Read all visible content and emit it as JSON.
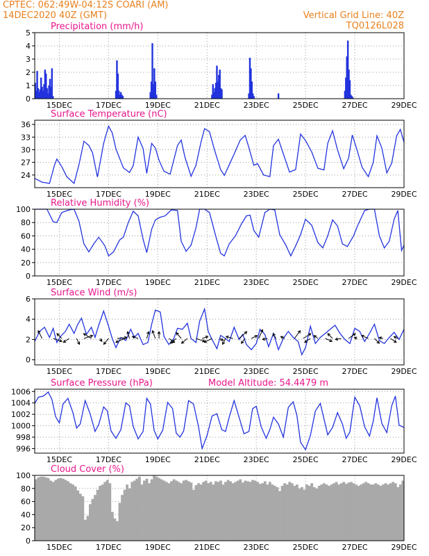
{
  "header": {
    "line1_left": "CPTEC:   062:49W-04:12S   COARI (AM)",
    "line2_left": "14DEC2020 40Z (GMT)",
    "line1_right": "Vertical Grid Line: 40Z",
    "line2_right": "TQ0126L028"
  },
  "colors": {
    "series": "#2233dd",
    "title": "#e8168c",
    "header": "#e8801e",
    "cloud": "#a9a9a9"
  },
  "chart_data": [
    {
      "type": "bar",
      "title": "Precipitation (mm/h)",
      "x_labels": [
        "15DEC",
        "17DEC",
        "19DEC",
        "21DEC",
        "23DEC",
        "25DEC",
        "27DEC",
        "29DEC"
      ],
      "x_range": [
        14.0,
        29.0
      ],
      "ylim": [
        0,
        5
      ],
      "yticks": [
        "0",
        "1",
        "2",
        "3",
        "4",
        "5"
      ],
      "x": [
        14.02,
        14.06,
        14.1,
        14.14,
        14.18,
        14.22,
        14.26,
        14.3,
        14.34,
        14.38,
        14.42,
        14.46,
        14.5,
        14.54,
        14.58,
        14.62,
        14.66,
        14.7,
        14.74,
        17.3,
        17.34,
        17.38,
        17.42,
        17.46,
        17.5,
        17.54,
        17.58,
        18.7,
        18.74,
        18.78,
        18.82,
        18.86,
        18.9,
        18.94,
        21.2,
        21.24,
        21.28,
        21.32,
        21.36,
        21.4,
        21.44,
        21.48,
        21.52,
        21.56,
        21.6,
        22.7,
        22.74,
        22.78,
        22.82,
        22.86,
        22.9,
        23.9,
        26.6,
        26.64,
        26.68,
        26.72,
        26.76,
        26.8,
        26.84,
        26.88,
        26.92
      ],
      "values": [
        1.2,
        0.6,
        2.1,
        0.8,
        0.5,
        0.7,
        1.6,
        0.9,
        0.6,
        1.1,
        2.2,
        1.9,
        0.8,
        0.4,
        1.0,
        1.5,
        0.9,
        2.3,
        0.2,
        0.6,
        2.9,
        1.9,
        0.6,
        0.3,
        0.5,
        0.3,
        0.2,
        0.5,
        1.3,
        4.2,
        1.1,
        2.3,
        1.3,
        0.3,
        0.3,
        1.1,
        0.5,
        0.8,
        1.2,
        2.5,
        1.3,
        1.8,
        2.2,
        0.8,
        0.7,
        0.4,
        3.1,
        2.3,
        1.3,
        0.4,
        0.2,
        0.4,
        0.6,
        1.6,
        3.2,
        4.4,
        2.2,
        1.4,
        0.3,
        0.2,
        0.1
      ]
    },
    {
      "type": "line",
      "title": "Surface Temperature (nC)",
      "x_labels": [
        "15DEC",
        "17DEC",
        "19DEC",
        "21DEC",
        "23DEC",
        "25DEC",
        "27DEC",
        "29DEC"
      ],
      "x_range": [
        14.0,
        29.0
      ],
      "ylim": [
        21,
        37
      ],
      "yticks": [
        "24",
        "27",
        "30",
        "33",
        "36"
      ],
      "x": [
        14.0,
        14.3,
        14.6,
        14.8,
        14.9,
        15.1,
        15.3,
        15.6,
        15.8,
        16.0,
        16.2,
        16.35,
        16.55,
        16.8,
        17.0,
        17.15,
        17.3,
        17.6,
        17.85,
        18.0,
        18.2,
        18.4,
        18.55,
        18.75,
        18.9,
        19.05,
        19.25,
        19.5,
        19.8,
        19.95,
        20.1,
        20.35,
        20.55,
        20.75,
        20.9,
        21.1,
        21.3,
        21.55,
        21.7,
        21.9,
        22.1,
        22.35,
        22.55,
        22.7,
        22.9,
        23.05,
        23.3,
        23.55,
        23.7,
        23.9,
        24.1,
        24.35,
        24.6,
        24.8,
        25.0,
        25.25,
        25.5,
        25.75,
        25.9,
        26.1,
        26.3,
        26.55,
        26.75,
        26.9,
        27.1,
        27.3,
        27.55,
        27.75,
        27.9,
        28.1,
        28.3,
        28.5,
        28.7,
        28.85,
        29.0
      ],
      "values": [
        23.2,
        22.3,
        22.0,
        26.3,
        27.8,
        26.0,
        23.6,
        22.0,
        26.5,
        32.0,
        31.0,
        29.3,
        23.5,
        31.5,
        35.6,
        34.0,
        30.2,
        25.7,
        24.6,
        26.2,
        33.0,
        30.3,
        24.4,
        31.5,
        30.4,
        27.5,
        24.9,
        24.2,
        31.0,
        32.3,
        28.3,
        23.7,
        26.3,
        31.7,
        35.0,
        34.3,
        30.0,
        25.3,
        23.9,
        26.4,
        29.0,
        32.3,
        33.4,
        30.5,
        26.3,
        26.7,
        24.0,
        23.6,
        31.0,
        32.5,
        29.0,
        24.7,
        25.3,
        33.7,
        32.2,
        29.5,
        25.6,
        25.2,
        31.5,
        34.5,
        30.0,
        25.5,
        28.0,
        33.5,
        29.8,
        25.8,
        23.6,
        27.0,
        33.3,
        30.4,
        24.5,
        26.8,
        33.3,
        34.8,
        31.8
      ]
    },
    {
      "type": "line",
      "title": "Relative Humidity (%)",
      "x_labels": [
        "15DEC",
        "17DEC",
        "19DEC",
        "21DEC",
        "23DEC",
        "25DEC",
        "27DEC",
        "29DEC"
      ],
      "x_range": [
        14.0,
        29.0
      ],
      "ylim": [
        0,
        100
      ],
      "yticks": [
        "0",
        "20",
        "40",
        "60",
        "80",
        "100"
      ],
      "x": [
        14.0,
        14.3,
        14.5,
        14.75,
        14.9,
        15.1,
        15.4,
        15.6,
        15.8,
        16.0,
        16.2,
        16.4,
        16.6,
        16.85,
        17.0,
        17.2,
        17.45,
        17.6,
        17.8,
        18.0,
        18.2,
        18.4,
        18.55,
        18.75,
        18.9,
        19.1,
        19.3,
        19.55,
        19.8,
        19.95,
        20.15,
        20.35,
        20.55,
        20.7,
        20.9,
        21.1,
        21.35,
        21.55,
        21.7,
        21.9,
        22.15,
        22.4,
        22.6,
        22.75,
        22.9,
        23.1,
        23.35,
        23.55,
        23.75,
        23.95,
        24.2,
        24.4,
        24.6,
        24.8,
        25.0,
        25.25,
        25.5,
        25.7,
        25.9,
        26.1,
        26.3,
        26.5,
        26.7,
        26.95,
        27.1,
        27.4,
        27.6,
        27.8,
        28.0,
        28.2,
        28.4,
        28.6,
        28.75,
        28.9,
        29.0
      ],
      "values": [
        100,
        100,
        100,
        81,
        80,
        95,
        99,
        100,
        82,
        48,
        36,
        48,
        58,
        45,
        30,
        36,
        54,
        58,
        80,
        97,
        90,
        55,
        35,
        70,
        84,
        88,
        90,
        99,
        98,
        52,
        37,
        46,
        72,
        100,
        100,
        95,
        60,
        34,
        30,
        48,
        60,
        78,
        90,
        91,
        68,
        58,
        95,
        100,
        99,
        62,
        46,
        30,
        45,
        62,
        85,
        76,
        50,
        42,
        60,
        84,
        75,
        48,
        44,
        60,
        74,
        98,
        100,
        100,
        60,
        42,
        52,
        85,
        98,
        38,
        46
      ]
    },
    {
      "type": "line",
      "title": "Surface Wind (m/s)",
      "x_labels": [
        "15DEC",
        "17DEC",
        "19DEC",
        "21DEC",
        "23DEC",
        "25DEC",
        "27DEC",
        "29DEC"
      ],
      "x_range": [
        14.0,
        29.0
      ],
      "ylim": [
        -0.5,
        6
      ],
      "yticks": [
        "0",
        "2",
        "4",
        "6"
      ],
      "x": [
        14.0,
        14.2,
        14.4,
        14.6,
        14.75,
        14.9,
        15.05,
        15.25,
        15.4,
        15.6,
        15.75,
        15.9,
        16.1,
        16.3,
        16.45,
        16.6,
        16.8,
        17.0,
        17.15,
        17.3,
        17.5,
        17.7,
        17.9,
        18.05,
        18.2,
        18.4,
        18.6,
        18.75,
        18.9,
        19.1,
        19.25,
        19.45,
        19.65,
        19.8,
        20.0,
        20.2,
        20.35,
        20.55,
        20.7,
        20.9,
        21.05,
        21.2,
        21.4,
        21.55,
        21.75,
        21.9,
        22.1,
        22.3,
        22.45,
        22.6,
        22.8,
        23.0,
        23.15,
        23.35,
        23.5,
        23.7,
        23.9,
        24.1,
        24.3,
        24.5,
        24.7,
        24.85,
        25.0,
        25.2,
        25.4,
        25.6,
        25.8,
        26.0,
        26.2,
        26.4,
        26.6,
        26.8,
        27.0,
        27.2,
        27.4,
        27.6,
        27.8,
        28.0,
        28.2,
        28.4,
        28.6,
        28.8,
        29.0
      ],
      "values": [
        1.8,
        2.8,
        3.2,
        2.2,
        3.1,
        1.7,
        2.3,
        2.8,
        3.5,
        2.6,
        3.5,
        4.1,
        2.5,
        3.2,
        2.2,
        3.4,
        4.8,
        3.3,
        2.1,
        1.2,
        2.2,
        1.9,
        3.0,
        2.2,
        2.6,
        1.5,
        1.7,
        3.5,
        4.9,
        4.7,
        2.3,
        1.5,
        2.1,
        3.1,
        3.0,
        3.6,
        2.1,
        1.7,
        3.8,
        5.0,
        2.8,
        2.0,
        1.1,
        2.4,
        2.1,
        1.8,
        3.2,
        2.0,
        2.5,
        1.5,
        1.0,
        1.6,
        3.0,
        2.5,
        1.3,
        2.6,
        1.0,
        2.1,
        2.8,
        2.2,
        1.8,
        0.5,
        1.2,
        3.3,
        1.6,
        2.2,
        2.6,
        3.0,
        3.4,
        2.6,
        2.0,
        1.6,
        3.1,
        2.8,
        1.8,
        2.6,
        3.5,
        1.9,
        1.6,
        2.2,
        2.7,
        2.0,
        3.0
      ],
      "arrows_x": [
        14.3,
        14.75,
        15.1,
        15.4,
        15.7,
        16.0,
        16.3,
        16.65,
        17.0,
        17.35,
        17.65,
        17.85,
        18.2,
        18.55,
        18.9,
        19.05,
        19.45,
        19.75,
        19.95,
        20.2,
        20.55,
        20.8,
        21.2,
        21.5,
        21.75,
        22.05,
        22.3,
        22.55,
        22.8,
        23.1,
        23.45,
        23.8,
        24.15,
        24.55,
        24.9,
        25.2,
        25.5,
        25.8,
        26.1,
        26.45,
        26.75,
        27.1,
        27.55,
        27.8,
        28.15,
        28.45,
        28.75
      ],
      "arrows_dx": [
        -0.4,
        0.9,
        -0.5,
        -0.6,
        0.3,
        0.9,
        -0.8,
        0.2,
        -0.5,
        1.0,
        -0.9,
        -0.2,
        -0.6,
        0.2,
        -0.3,
        0.0,
        0.6,
        -0.6,
        -0.5,
        -0.6,
        0.9,
        0.6,
        -0.8,
        0.4,
        -0.3,
        -0.7,
        0.8,
        -0.4,
        0.6,
        0.4,
        -0.5,
        -0.3,
        -0.4,
        0.6,
        0.8,
        -0.6,
        -0.4,
        0.7,
        -0.5,
        -0.6,
        0.7,
        -0.3,
        -0.7,
        0.5,
        -0.4,
        0.6,
        -0.4
      ],
      "arrows_dy": [
        0.8,
        -0.3,
        0.5,
        -0.4,
        -0.6,
        0.3,
        0.5,
        -0.3,
        -0.6,
        0.1,
        -0.4,
        0.7,
        0.2,
        0.7,
        0.8,
        0.7,
        -0.4,
        -0.5,
        0.6,
        -0.5,
        -0.3,
        0.2,
        -0.4,
        -0.2,
        -0.6,
        0.2,
        0.7,
        -0.5,
        0.3,
        0.9,
        -0.1,
        0.5,
        0.2,
        0.8,
        0.5,
        -0.4,
        0.3,
        -0.3,
        0.5,
        -0.1,
        0.5,
        0.1,
        0.3,
        -0.5,
        0.1,
        -0.4,
        0.2
      ]
    },
    {
      "type": "line",
      "title": "Surface Pressure (hPa)",
      "annotation": "Model Altitude: 54.4479 m",
      "x_labels": [
        "15DEC",
        "17DEC",
        "19DEC",
        "21DEC",
        "23DEC",
        "25DEC",
        "27DEC",
        "29DEC"
      ],
      "x_range": [
        14.0,
        29.0
      ],
      "ylim": [
        995.2,
        1006.4
      ],
      "yticks": [
        "996",
        "998",
        "1000",
        "1002",
        "1004",
        "1006"
      ],
      "x": [
        14.0,
        14.15,
        14.35,
        14.55,
        14.7,
        14.85,
        15.0,
        15.15,
        15.35,
        15.55,
        15.7,
        15.85,
        16.05,
        16.25,
        16.45,
        16.6,
        16.8,
        16.95,
        17.1,
        17.3,
        17.5,
        17.7,
        17.85,
        18.0,
        18.2,
        18.4,
        18.55,
        18.7,
        18.85,
        19.0,
        19.2,
        19.4,
        19.6,
        19.75,
        19.9,
        20.05,
        20.25,
        20.45,
        20.65,
        20.8,
        21.0,
        21.2,
        21.4,
        21.6,
        21.75,
        21.9,
        22.1,
        22.3,
        22.5,
        22.7,
        22.85,
        23.0,
        23.2,
        23.4,
        23.55,
        23.7,
        23.9,
        24.1,
        24.3,
        24.5,
        24.65,
        24.8,
        25.0,
        25.2,
        25.4,
        25.6,
        25.75,
        25.9,
        26.1,
        26.3,
        26.5,
        26.65,
        26.8,
        27.0,
        27.2,
        27.4,
        27.6,
        27.75,
        27.9,
        28.1,
        28.3,
        28.5,
        28.65,
        28.8,
        29.0
      ],
      "values": [
        1003.9,
        1005.0,
        1005.2,
        1005.9,
        1004.6,
        1001.6,
        1000.5,
        1003.8,
        1004.8,
        1002.3,
        999.6,
        1000.3,
        1004.4,
        1002.1,
        999.0,
        1000.2,
        1003.3,
        1002.6,
        999.1,
        997.8,
        999.3,
        1004.0,
        1003.5,
        999.9,
        997.7,
        999.0,
        1004.8,
        1003.8,
        999.2,
        997.7,
        999.2,
        1004.1,
        1003.0,
        998.7,
        998.0,
        999.1,
        1004.4,
        1003.8,
        999.9,
        996.0,
        998.3,
        1001.7,
        1002.1,
        999.3,
        999.0,
        1001.5,
        1004.4,
        1001.5,
        998.6,
        999.0,
        1003.0,
        1003.4,
        999.8,
        997.8,
        999.3,
        1001.5,
        1000.3,
        998.0,
        1003.2,
        1004.2,
        1001.8,
        997.1,
        995.8,
        998.3,
        1002.6,
        1003.9,
        1001.2,
        998.4,
        999.7,
        1002.3,
        1000.3,
        997.8,
        998.9,
        1005.0,
        1003.5,
        999.8,
        998.2,
        1000.8,
        1004.9,
        1000.4,
        998.8,
        1003.5,
        1005.2,
        1000.1,
        999.7
      ]
    },
    {
      "type": "bar",
      "title": "Cloud Cover (%)",
      "x_labels": [
        "15DEC",
        "17DEC",
        "19DEC",
        "21DEC",
        "23DEC",
        "25DEC",
        "27DEC",
        "29DEC"
      ],
      "x_range": [
        14.0,
        29.0
      ],
      "ylim": [
        0,
        100
      ],
      "yticks": [
        "0",
        "20",
        "40",
        "60",
        "80",
        "100"
      ],
      "x": [
        14.0,
        14.1,
        14.2,
        14.3,
        14.4,
        14.5,
        14.6,
        14.7,
        14.8,
        14.9,
        15.0,
        15.1,
        15.2,
        15.3,
        15.4,
        15.5,
        15.6,
        15.7,
        15.8,
        15.9,
        16.0,
        16.1,
        16.2,
        16.3,
        16.4,
        16.5,
        16.6,
        16.7,
        16.8,
        16.9,
        17.0,
        17.1,
        17.2,
        17.3,
        17.4,
        17.5,
        17.6,
        17.7,
        17.8,
        17.9,
        18.0,
        18.1,
        18.2,
        18.3,
        18.4,
        18.5,
        18.6,
        18.7,
        18.8,
        18.9,
        19.0,
        19.1,
        19.2,
        19.3,
        19.4,
        19.5,
        19.6,
        19.7,
        19.8,
        19.9,
        20.0,
        20.1,
        20.2,
        20.3,
        20.4,
        20.5,
        20.6,
        20.7,
        20.8,
        20.9,
        21.0,
        21.1,
        21.2,
        21.3,
        21.4,
        21.5,
        21.6,
        21.7,
        21.8,
        21.9,
        22.0,
        22.1,
        22.2,
        22.3,
        22.4,
        22.5,
        22.6,
        22.7,
        22.8,
        22.9,
        23.0,
        23.1,
        23.2,
        23.3,
        23.4,
        23.5,
        23.6,
        23.7,
        23.8,
        23.9,
        24.0,
        24.1,
        24.2,
        24.3,
        24.4,
        24.5,
        24.6,
        24.7,
        24.8,
        24.9,
        25.0,
        25.1,
        25.2,
        25.3,
        25.4,
        25.5,
        25.6,
        25.7,
        25.8,
        25.9,
        26.0,
        26.1,
        26.2,
        26.3,
        26.4,
        26.5,
        26.6,
        26.7,
        26.8,
        26.9,
        27.0,
        27.1,
        27.2,
        27.3,
        27.4,
        27.5,
        27.6,
        27.7,
        27.8,
        27.9,
        28.0,
        28.1,
        28.2,
        28.3,
        28.4,
        28.5,
        28.6,
        28.7,
        28.8,
        28.9
      ],
      "values": [
        94,
        97,
        98,
        98,
        97,
        96,
        92,
        90,
        93,
        95,
        96,
        95,
        93,
        91,
        88,
        86,
        83,
        77,
        72,
        68,
        32,
        38,
        56,
        64,
        70,
        78,
        84,
        86,
        90,
        93,
        88,
        44,
        34,
        30,
        58,
        70,
        78,
        86,
        80,
        90,
        92,
        95,
        98,
        86,
        92,
        95,
        88,
        94,
        100,
        98,
        96,
        94,
        92,
        90,
        88,
        91,
        94,
        92,
        90,
        88,
        92,
        93,
        91,
        89,
        78,
        85,
        88,
        86,
        90,
        92,
        88,
        90,
        86,
        91,
        90,
        92,
        86,
        90,
        93,
        91,
        88,
        90,
        92,
        94,
        89,
        92,
        91,
        90,
        93,
        92,
        90,
        87,
        88,
        91,
        86,
        90,
        86,
        84,
        82,
        76,
        84,
        88,
        86,
        90,
        88,
        84,
        86,
        80,
        82,
        78,
        86,
        84,
        88,
        82,
        80,
        84,
        86,
        88,
        86,
        84,
        86,
        88,
        90,
        86,
        88,
        90,
        87,
        89,
        90,
        88,
        86,
        84,
        86,
        88,
        90,
        88,
        86,
        86,
        88,
        86,
        84,
        86,
        88,
        86,
        88,
        90,
        88,
        82,
        86,
        92
      ]
    }
  ]
}
